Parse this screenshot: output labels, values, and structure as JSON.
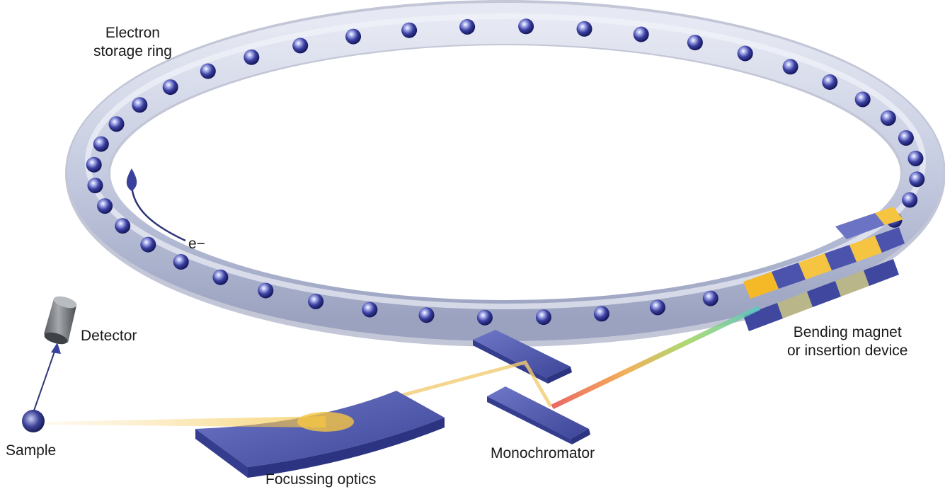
{
  "labels": {
    "electron_storage_ring": [
      "Electron",
      "storage ring"
    ],
    "electron_symbol": "e−",
    "detector": "Detector",
    "sample": "Sample",
    "focussing_optics": "Focussing optics",
    "monochromator": "Monochromator",
    "bending_magnet": [
      "Bending magnet",
      "or insertion device"
    ]
  },
  "ring": {
    "electron_count": 44
  },
  "colors": {
    "ring_fill": "#c9d0e2",
    "ring_shadow": "#8f97b5",
    "electron": "#2a2e8c",
    "optics_blue": "#4a52a8",
    "magnet_yellow": "#f5c542",
    "beam_yellow": "#f7d27a",
    "arrow": "#2f3677",
    "detector_gray": "#7a7d82"
  }
}
